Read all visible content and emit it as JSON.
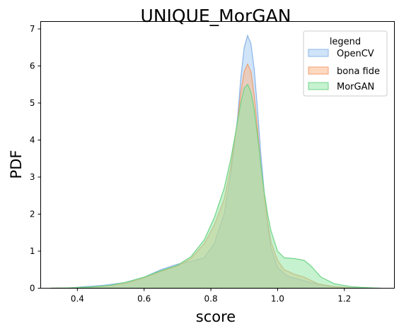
{
  "chart_data": {
    "type": "area",
    "title": "UNIQUE_MorGAN",
    "xlabel": "score",
    "ylabel": "PDF",
    "xlim": [
      0.29,
      1.35
    ],
    "ylim": [
      0,
      7.2
    ],
    "xticks": [
      "0.4",
      "0.6",
      "0.8",
      "1.0",
      "1.2"
    ],
    "xtick_values": [
      0.4,
      0.6,
      0.8,
      1.0,
      1.2
    ],
    "yticks": [
      "0",
      "1",
      "2",
      "3",
      "4",
      "5",
      "6",
      "7"
    ],
    "ytick_values": [
      0,
      1,
      2,
      3,
      4,
      5,
      6,
      7
    ],
    "grid": false,
    "legend": {
      "title": "legend",
      "placement": "top-right",
      "entries": [
        "OpenCV",
        "bona fide",
        "MorGAN"
      ]
    },
    "series": [
      {
        "name": "OpenCV",
        "fill": "#a1c9f4",
        "stroke": "#8ab4e6",
        "points": [
          [
            0.32,
            0.0
          ],
          [
            0.38,
            0.01
          ],
          [
            0.42,
            0.04
          ],
          [
            0.48,
            0.08
          ],
          [
            0.54,
            0.15
          ],
          [
            0.6,
            0.3
          ],
          [
            0.65,
            0.5
          ],
          [
            0.7,
            0.65
          ],
          [
            0.74,
            0.72
          ],
          [
            0.78,
            0.82
          ],
          [
            0.81,
            1.2
          ],
          [
            0.84,
            2.0
          ],
          [
            0.86,
            3.1
          ],
          [
            0.88,
            4.6
          ],
          [
            0.89,
            5.7
          ],
          [
            0.9,
            6.5
          ],
          [
            0.91,
            6.82
          ],
          [
            0.92,
            6.6
          ],
          [
            0.93,
            5.9
          ],
          [
            0.94,
            4.8
          ],
          [
            0.95,
            3.6
          ],
          [
            0.96,
            2.6
          ],
          [
            0.97,
            1.7
          ],
          [
            0.98,
            1.1
          ],
          [
            1.0,
            0.55
          ],
          [
            1.03,
            0.32
          ],
          [
            1.06,
            0.25
          ],
          [
            1.1,
            0.15
          ],
          [
            1.15,
            0.06
          ],
          [
            1.2,
            0.02
          ],
          [
            1.25,
            0.0
          ]
        ]
      },
      {
        "name": "bona fide",
        "fill": "#ffb482",
        "stroke": "#f0a070",
        "points": [
          [
            0.32,
            0.0
          ],
          [
            0.38,
            0.01
          ],
          [
            0.44,
            0.03
          ],
          [
            0.5,
            0.07
          ],
          [
            0.55,
            0.14
          ],
          [
            0.6,
            0.28
          ],
          [
            0.65,
            0.45
          ],
          [
            0.7,
            0.6
          ],
          [
            0.74,
            0.8
          ],
          [
            0.78,
            1.2
          ],
          [
            0.81,
            1.7
          ],
          [
            0.84,
            2.4
          ],
          [
            0.86,
            3.3
          ],
          [
            0.88,
            4.5
          ],
          [
            0.89,
            5.3
          ],
          [
            0.9,
            5.85
          ],
          [
            0.91,
            6.05
          ],
          [
            0.92,
            5.85
          ],
          [
            0.93,
            5.2
          ],
          [
            0.94,
            4.3
          ],
          [
            0.95,
            3.3
          ],
          [
            0.96,
            2.5
          ],
          [
            0.97,
            1.8
          ],
          [
            0.98,
            1.25
          ],
          [
            1.0,
            0.75
          ],
          [
            1.02,
            0.5
          ],
          [
            1.05,
            0.38
          ],
          [
            1.08,
            0.3
          ],
          [
            1.12,
            0.12
          ],
          [
            1.17,
            0.04
          ],
          [
            1.22,
            0.01
          ],
          [
            1.25,
            0.0
          ]
        ]
      },
      {
        "name": "MorGAN",
        "fill": "#8de5a1",
        "stroke": "#6fd487",
        "points": [
          [
            0.32,
            0.0
          ],
          [
            0.38,
            0.01
          ],
          [
            0.44,
            0.03
          ],
          [
            0.5,
            0.08
          ],
          [
            0.55,
            0.17
          ],
          [
            0.6,
            0.3
          ],
          [
            0.65,
            0.47
          ],
          [
            0.7,
            0.62
          ],
          [
            0.74,
            0.85
          ],
          [
            0.78,
            1.3
          ],
          [
            0.81,
            1.9
          ],
          [
            0.84,
            2.7
          ],
          [
            0.86,
            3.5
          ],
          [
            0.88,
            4.5
          ],
          [
            0.89,
            5.0
          ],
          [
            0.9,
            5.4
          ],
          [
            0.91,
            5.5
          ],
          [
            0.92,
            5.3
          ],
          [
            0.93,
            4.8
          ],
          [
            0.94,
            4.1
          ],
          [
            0.95,
            3.3
          ],
          [
            0.96,
            2.6
          ],
          [
            0.97,
            2.0
          ],
          [
            0.98,
            1.55
          ],
          [
            1.0,
            1.0
          ],
          [
            1.02,
            0.82
          ],
          [
            1.05,
            0.8
          ],
          [
            1.08,
            0.75
          ],
          [
            1.1,
            0.6
          ],
          [
            1.13,
            0.3
          ],
          [
            1.17,
            0.12
          ],
          [
            1.22,
            0.04
          ],
          [
            1.28,
            0.01
          ],
          [
            1.31,
            0.0
          ]
        ]
      }
    ]
  }
}
